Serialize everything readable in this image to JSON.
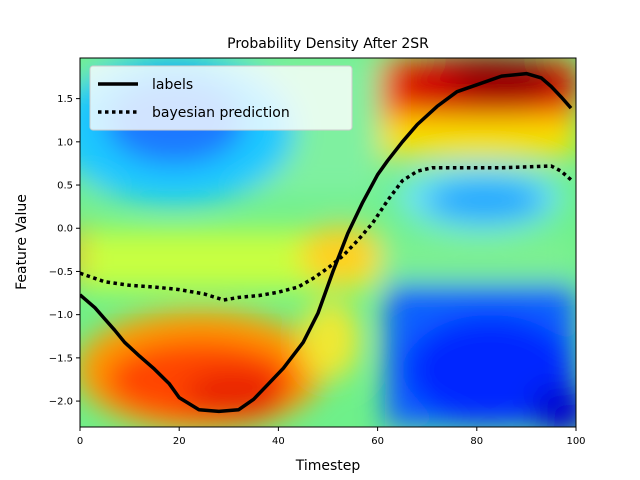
{
  "chart_data": {
    "type": "line",
    "title": "Probability Density After 2SR",
    "xlabel": "Timestep",
    "ylabel": "Feature Value",
    "xlim": [
      0,
      100
    ],
    "ylim": [
      -2.3,
      1.97
    ],
    "xticks": [
      0,
      20,
      40,
      60,
      80,
      100
    ],
    "xtick_labels": [
      "0",
      "20",
      "40",
      "60",
      "80",
      "100"
    ],
    "yticks": [
      -2.0,
      -1.5,
      -1.0,
      -0.5,
      0.0,
      0.5,
      1.0,
      1.5
    ],
    "ytick_labels": [
      "−2.0",
      "−1.5",
      "−1.0",
      "−0.5",
      "0.0",
      "0.5",
      "1.0",
      "1.5"
    ],
    "legend_position": "upper-left",
    "background": "heatmap probability density (jet colormap)",
    "series": [
      {
        "name": "labels",
        "style": "solid",
        "color": "#000000",
        "x": [
          0,
          3,
          5,
          7,
          9,
          12,
          15,
          18,
          20,
          24,
          28,
          32,
          35,
          38,
          41,
          45,
          48,
          51,
          54,
          57,
          60,
          62,
          65,
          68,
          72,
          76,
          80,
          85,
          90,
          93,
          95,
          97,
          99
        ],
        "y": [
          -0.77,
          -0.92,
          -1.05,
          -1.18,
          -1.32,
          -1.48,
          -1.63,
          -1.8,
          -1.96,
          -2.1,
          -2.12,
          -2.1,
          -1.98,
          -1.8,
          -1.62,
          -1.32,
          -0.98,
          -0.5,
          -0.06,
          0.3,
          0.62,
          0.78,
          1.0,
          1.2,
          1.41,
          1.58,
          1.66,
          1.76,
          1.79,
          1.74,
          1.64,
          1.52,
          1.39
        ]
      },
      {
        "name": "bayesian prediction",
        "style": "dotted",
        "color": "#000000",
        "x": [
          0,
          5,
          10,
          15,
          20,
          25,
          29,
          32,
          36,
          40,
          44,
          47,
          50,
          53,
          56,
          59,
          62,
          65,
          68,
          71,
          75,
          80,
          85,
          90,
          95,
          97,
          99
        ],
        "y": [
          -0.52,
          -0.62,
          -0.66,
          -0.68,
          -0.71,
          -0.76,
          -0.83,
          -0.8,
          -0.78,
          -0.74,
          -0.68,
          -0.58,
          -0.46,
          -0.32,
          -0.14,
          0.06,
          0.32,
          0.55,
          0.66,
          0.7,
          0.7,
          0.7,
          0.7,
          0.71,
          0.72,
          0.66,
          0.56
        ]
      }
    ]
  }
}
